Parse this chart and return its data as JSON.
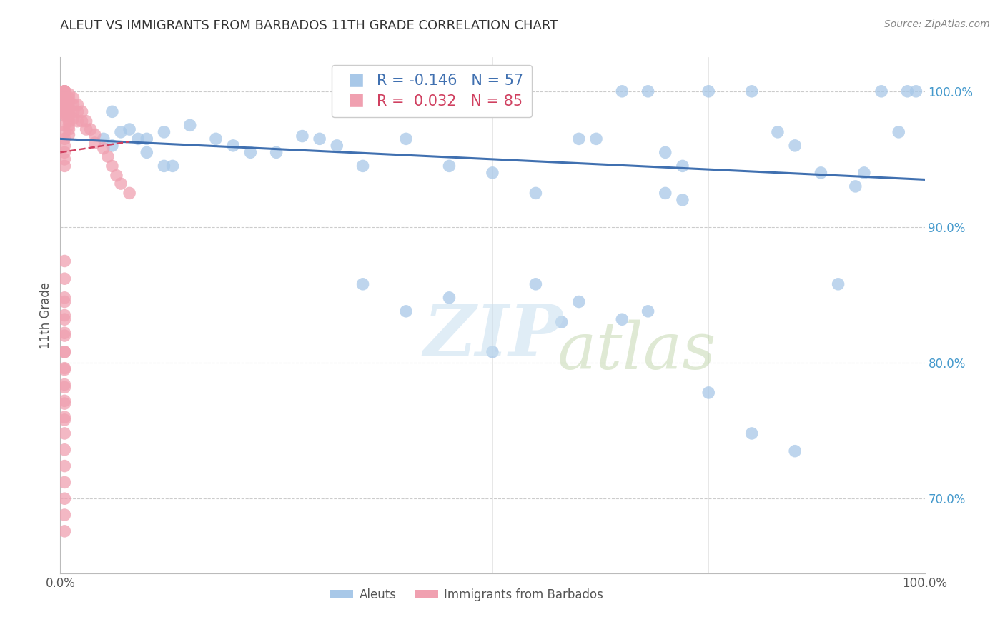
{
  "title": "ALEUT VS IMMIGRANTS FROM BARBADOS 11TH GRADE CORRELATION CHART",
  "source": "Source: ZipAtlas.com",
  "ylabel": "11th Grade",
  "ytick_labels": [
    "100.0%",
    "90.0%",
    "80.0%",
    "70.0%"
  ],
  "ytick_values": [
    1.0,
    0.9,
    0.8,
    0.7
  ],
  "xlim": [
    0.0,
    1.0
  ],
  "ylim": [
    0.645,
    1.025
  ],
  "legend_blue_r": "-0.146",
  "legend_blue_n": "57",
  "legend_pink_r": "0.032",
  "legend_pink_n": "85",
  "blue_color": "#A8C8E8",
  "pink_color": "#F0A0B0",
  "blue_line_color": "#4070B0",
  "pink_line_color": "#D04060",
  "aleuts_x": [
    0.06,
    0.38,
    0.07,
    0.08,
    0.09,
    0.1,
    0.12,
    0.15,
    0.2,
    0.22,
    0.25,
    0.05,
    0.06,
    0.1,
    0.12,
    0.13,
    0.18,
    0.28,
    0.3,
    0.32,
    0.35,
    0.4,
    0.45,
    0.5,
    0.55,
    0.6,
    0.62,
    0.65,
    0.68,
    0.7,
    0.72,
    0.75,
    0.8,
    0.83,
    0.85,
    0.88,
    0.9,
    0.92,
    0.93,
    0.95,
    0.97,
    0.98,
    0.99,
    0.65,
    0.7,
    0.72,
    0.55,
    0.6,
    0.45,
    0.5,
    0.35,
    0.4,
    0.58,
    0.68,
    0.8,
    0.85,
    0.75
  ],
  "aleuts_y": [
    0.985,
    1.0,
    0.97,
    0.972,
    0.965,
    0.965,
    0.97,
    0.975,
    0.96,
    0.955,
    0.955,
    0.965,
    0.96,
    0.955,
    0.945,
    0.945,
    0.965,
    0.967,
    0.965,
    0.96,
    0.945,
    0.965,
    0.945,
    0.94,
    0.925,
    0.965,
    0.965,
    1.0,
    1.0,
    0.955,
    0.945,
    1.0,
    1.0,
    0.97,
    0.96,
    0.94,
    0.858,
    0.93,
    0.94,
    1.0,
    0.97,
    1.0,
    1.0,
    0.832,
    0.925,
    0.92,
    0.858,
    0.845,
    0.848,
    0.808,
    0.858,
    0.838,
    0.83,
    0.838,
    0.748,
    0.735,
    0.778
  ],
  "barbados_x": [
    0.005,
    0.005,
    0.005,
    0.005,
    0.005,
    0.005,
    0.005,
    0.005,
    0.005,
    0.005,
    0.005,
    0.005,
    0.005,
    0.005,
    0.005,
    0.005,
    0.005,
    0.005,
    0.005,
    0.005,
    0.005,
    0.005,
    0.005,
    0.005,
    0.005,
    0.005,
    0.005,
    0.005,
    0.005,
    0.01,
    0.01,
    0.01,
    0.01,
    0.01,
    0.01,
    0.01,
    0.01,
    0.01,
    0.01,
    0.015,
    0.015,
    0.015,
    0.015,
    0.02,
    0.02,
    0.02,
    0.025,
    0.025,
    0.03,
    0.03,
    0.035,
    0.04,
    0.04,
    0.05,
    0.055,
    0.06,
    0.065,
    0.07,
    0.08,
    0.005,
    0.005,
    0.005,
    0.005,
    0.005,
    0.005,
    0.005,
    0.005,
    0.005,
    0.005,
    0.005,
    0.005,
    0.005,
    0.005,
    0.005,
    0.005,
    0.005,
    0.005,
    0.005,
    0.005,
    0.005,
    0.005,
    0.005,
    0.005,
    0.005
  ],
  "barbados_y": [
    1.0,
    1.0,
    1.0,
    1.0,
    1.0,
    0.998,
    0.997,
    0.996,
    0.995,
    0.994,
    0.993,
    0.992,
    0.991,
    0.99,
    0.989,
    0.988,
    0.987,
    0.986,
    0.985,
    0.984,
    0.983,
    0.982,
    0.975,
    0.97,
    0.965,
    0.96,
    0.955,
    0.95,
    0.945,
    0.998,
    0.995,
    0.992,
    0.988,
    0.985,
    0.982,
    0.978,
    0.975,
    0.972,
    0.968,
    0.995,
    0.99,
    0.985,
    0.98,
    0.99,
    0.985,
    0.978,
    0.985,
    0.978,
    0.978,
    0.972,
    0.972,
    0.968,
    0.962,
    0.958,
    0.952,
    0.945,
    0.938,
    0.932,
    0.925,
    0.875,
    0.862,
    0.848,
    0.835,
    0.822,
    0.808,
    0.795,
    0.782,
    0.77,
    0.758,
    0.845,
    0.832,
    0.82,
    0.808,
    0.796,
    0.784,
    0.772,
    0.76,
    0.748,
    0.736,
    0.724,
    0.712,
    0.7,
    0.688,
    0.676
  ]
}
